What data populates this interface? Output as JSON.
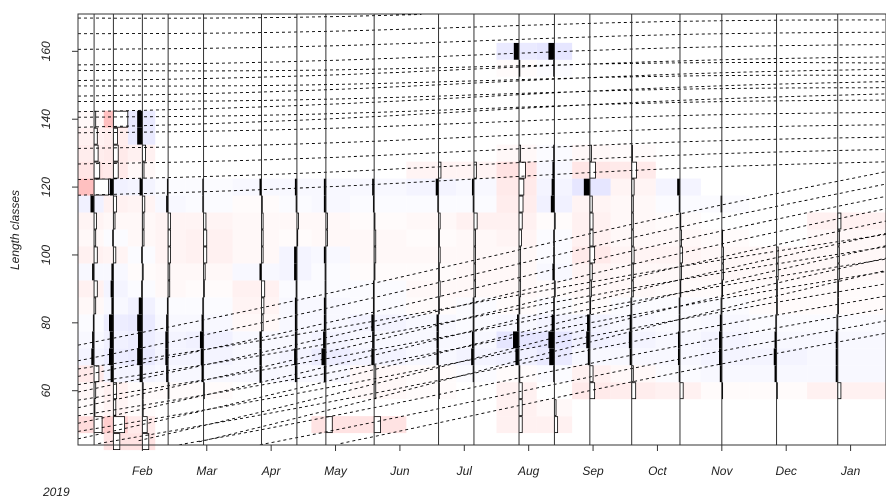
{
  "chart_data": {
    "type": "heatmap",
    "title": "",
    "xlabel": "",
    "ylabel": "Length classes",
    "year_label": "2019",
    "xlim": [
      0,
      12.55
    ],
    "ylim": [
      44,
      171
    ],
    "x_ticks": [
      {
        "label": "Feb",
        "value": 1.0
      },
      {
        "label": "Mar",
        "value": 2.0
      },
      {
        "label": "Apr",
        "value": 3.0
      },
      {
        "label": "May",
        "value": 4.0
      },
      {
        "label": "Jun",
        "value": 5.0
      },
      {
        "label": "Jul",
        "value": 6.0
      },
      {
        "label": "Aug",
        "value": 7.0
      },
      {
        "label": "Sep",
        "value": 8.0
      },
      {
        "label": "Oct",
        "value": 9.0
      },
      {
        "label": "Nov",
        "value": 10.0
      },
      {
        "label": "Dec",
        "value": 11.0
      },
      {
        "label": "Jan",
        "value": 12.0
      }
    ],
    "y_ticks": [
      60,
      80,
      100,
      120,
      140,
      160
    ],
    "grid": false,
    "colors": {
      "positive": "#ff8a8a",
      "negative": "#8a8aff",
      "bar_positive": "#000000",
      "bar_negative": "#ffffff",
      "growth_curves": "#000000",
      "axis": "#333333"
    },
    "class_width": 5,
    "samples": [
      {
        "x": 0.25,
        "cells": [
          [
            50,
            0.5
          ],
          [
            55,
            0.05
          ],
          [
            60,
            0.1
          ],
          [
            65,
            0.3
          ],
          [
            70,
            -0.15
          ],
          [
            75,
            -0.1
          ],
          [
            80,
            -0.05
          ],
          [
            85,
            0.1
          ],
          [
            90,
            0.2
          ],
          [
            95,
            -0.1
          ],
          [
            100,
            0.2
          ],
          [
            105,
            0.1
          ],
          [
            110,
            0.15
          ],
          [
            115,
            -0.2
          ],
          [
            120,
            0.9
          ],
          [
            125,
            0.35
          ],
          [
            130,
            0.25
          ],
          [
            135,
            0.2
          ],
          [
            140,
            0.1
          ]
        ]
      },
      {
        "x": 0.55,
        "cells": [
          [
            45,
            0.4
          ],
          [
            50,
            0.7
          ],
          [
            55,
            0.15
          ],
          [
            60,
            0.2
          ],
          [
            65,
            -0.15
          ],
          [
            70,
            -0.25
          ],
          [
            75,
            -0.2
          ],
          [
            80,
            -0.25
          ],
          [
            85,
            -0.1
          ],
          [
            90,
            -0.15
          ],
          [
            95,
            -0.1
          ],
          [
            100,
            0.15
          ],
          [
            105,
            -0.05
          ],
          [
            110,
            0.1
          ],
          [
            115,
            0.2
          ],
          [
            120,
            -0.2
          ],
          [
            125,
            0.3
          ],
          [
            130,
            0.3
          ],
          [
            135,
            0.25
          ],
          [
            140,
            0.9
          ]
        ]
      },
      {
        "x": 1.0,
        "cells": [
          [
            45,
            0.4
          ],
          [
            50,
            0.3
          ],
          [
            55,
            0.05
          ],
          [
            60,
            0.05
          ],
          [
            65,
            -0.15
          ],
          [
            70,
            -0.3
          ],
          [
            75,
            -0.25
          ],
          [
            80,
            -0.3
          ],
          [
            85,
            -0.2
          ],
          [
            90,
            -0.05
          ],
          [
            95,
            0.05
          ],
          [
            100,
            -0.05
          ],
          [
            105,
            0.1
          ],
          [
            110,
            0.1
          ],
          [
            115,
            0.15
          ],
          [
            120,
            -0.15
          ],
          [
            125,
            0.1
          ],
          [
            130,
            0.2
          ],
          [
            135,
            -0.3
          ],
          [
            140,
            -0.3
          ]
        ]
      },
      {
        "x": 1.4,
        "cells": [
          [
            60,
            0.05
          ],
          [
            65,
            -0.1
          ],
          [
            70,
            -0.15
          ],
          [
            75,
            -0.15
          ],
          [
            80,
            -0.1
          ],
          [
            85,
            -0.05
          ],
          [
            90,
            0.1
          ],
          [
            95,
            0.1
          ],
          [
            100,
            0.15
          ],
          [
            105,
            0.15
          ],
          [
            110,
            0.15
          ],
          [
            115,
            -0.1
          ],
          [
            120,
            -0.05
          ]
        ]
      },
      {
        "x": 1.95,
        "cells": [
          [
            60,
            0.05
          ],
          [
            65,
            -0.1
          ],
          [
            70,
            -0.15
          ],
          [
            75,
            -0.2
          ],
          [
            80,
            -0.1
          ],
          [
            85,
            -0.05
          ],
          [
            90,
            0.05
          ],
          [
            95,
            0.1
          ],
          [
            100,
            0.2
          ],
          [
            105,
            0.2
          ],
          [
            110,
            0.15
          ],
          [
            115,
            -0.05
          ],
          [
            120,
            -0.05
          ]
        ]
      },
      {
        "x": 2.85,
        "cells": [
          [
            65,
            -0.1
          ],
          [
            70,
            -0.1
          ],
          [
            75,
            -0.1
          ],
          [
            80,
            0.1
          ],
          [
            85,
            0.15
          ],
          [
            90,
            0.2
          ],
          [
            95,
            -0.1
          ],
          [
            100,
            0.1
          ],
          [
            105,
            0.1
          ],
          [
            110,
            0.1
          ],
          [
            115,
            0.05
          ],
          [
            120,
            -0.1
          ]
        ]
      },
      {
        "x": 3.4,
        "cells": [
          [
            65,
            -0.1
          ],
          [
            70,
            -0.15
          ],
          [
            75,
            -0.1
          ],
          [
            80,
            -0.1
          ],
          [
            85,
            -0.1
          ],
          [
            90,
            -0.05
          ],
          [
            95,
            -0.15
          ],
          [
            100,
            -0.15
          ],
          [
            105,
            0.05
          ],
          [
            110,
            0.1
          ],
          [
            115,
            -0.05
          ],
          [
            120,
            -0.1
          ]
        ]
      },
      {
        "x": 3.85,
        "cells": [
          [
            50,
            0.4
          ],
          [
            65,
            -0.1
          ],
          [
            70,
            -0.25
          ],
          [
            75,
            -0.15
          ],
          [
            80,
            -0.1
          ],
          [
            85,
            -0.1
          ],
          [
            90,
            -0.05
          ],
          [
            95,
            -0.05
          ],
          [
            100,
            -0.1
          ],
          [
            105,
            0.1
          ],
          [
            110,
            0.1
          ],
          [
            115,
            -0.1
          ],
          [
            120,
            -0.1
          ]
        ]
      },
      {
        "x": 4.6,
        "cells": [
          [
            50,
            0.4
          ],
          [
            60,
            0.1
          ],
          [
            65,
            0.1
          ],
          [
            70,
            -0.15
          ],
          [
            75,
            -0.1
          ],
          [
            80,
            -0.15
          ],
          [
            85,
            -0.05
          ],
          [
            90,
            -0.05
          ],
          [
            95,
            0.05
          ],
          [
            100,
            0.1
          ],
          [
            105,
            0.1
          ],
          [
            110,
            0.05
          ],
          [
            115,
            -0.05
          ],
          [
            120,
            -0.1
          ]
        ]
      },
      {
        "x": 5.6,
        "cells": [
          [
            60,
            0.05
          ],
          [
            65,
            0.05
          ],
          [
            70,
            -0.1
          ],
          [
            75,
            -0.1
          ],
          [
            80,
            -0.1
          ],
          [
            85,
            0.05
          ],
          [
            90,
            0.1
          ],
          [
            95,
            0.05
          ],
          [
            100,
            0.1
          ],
          [
            105,
            0.05
          ],
          [
            110,
            0.1
          ],
          [
            115,
            -0.05
          ],
          [
            120,
            -0.15
          ],
          [
            125,
            0.15
          ]
        ]
      },
      {
        "x": 6.15,
        "cells": [
          [
            65,
            -0.05
          ],
          [
            70,
            -0.15
          ],
          [
            75,
            -0.1
          ],
          [
            80,
            -0.05
          ],
          [
            85,
            -0.05
          ],
          [
            90,
            0.1
          ],
          [
            95,
            0.1
          ],
          [
            100,
            0.1
          ],
          [
            105,
            0.1
          ],
          [
            110,
            0.2
          ],
          [
            115,
            -0.05
          ],
          [
            120,
            -0.1
          ],
          [
            125,
            0.15
          ]
        ]
      },
      {
        "x": 6.85,
        "cells": [
          [
            50,
            0.2
          ],
          [
            55,
            0.2
          ],
          [
            60,
            0.2
          ],
          [
            65,
            0.05
          ],
          [
            70,
            -0.2
          ],
          [
            75,
            -0.35
          ],
          [
            80,
            -0.1
          ],
          [
            85,
            0.05
          ],
          [
            90,
            0.1
          ],
          [
            95,
            0.1
          ],
          [
            100,
            0.1
          ],
          [
            105,
            0.15
          ],
          [
            110,
            0.2
          ],
          [
            115,
            0.25
          ],
          [
            120,
            0.3
          ],
          [
            125,
            0.4
          ],
          [
            130,
            0.1
          ],
          [
            155,
            0.05
          ],
          [
            160,
            -0.3
          ]
        ]
      },
      {
        "x": 7.4,
        "cells": [
          [
            50,
            0.2
          ],
          [
            55,
            0.1
          ],
          [
            65,
            -0.05
          ],
          [
            70,
            -0.3
          ],
          [
            75,
            -0.35
          ],
          [
            80,
            -0.15
          ],
          [
            85,
            -0.05
          ],
          [
            90,
            0.05
          ],
          [
            95,
            -0.1
          ],
          [
            100,
            -0.05
          ],
          [
            105,
            -0.05
          ],
          [
            110,
            0.05
          ],
          [
            115,
            -0.2
          ],
          [
            120,
            -0.15
          ],
          [
            125,
            -0.1
          ],
          [
            130,
            -0.05
          ],
          [
            155,
            -0.05
          ],
          [
            160,
            -0.35
          ]
        ]
      },
      {
        "x": 7.95,
        "cells": [
          [
            60,
            0.3
          ],
          [
            65,
            0.2
          ],
          [
            70,
            -0.1
          ],
          [
            75,
            -0.2
          ],
          [
            80,
            -0.15
          ],
          [
            85,
            0.05
          ],
          [
            90,
            0.1
          ],
          [
            95,
            0.15
          ],
          [
            100,
            0.3
          ],
          [
            105,
            0.2
          ],
          [
            110,
            0.2
          ],
          [
            115,
            0.15
          ],
          [
            120,
            -0.35
          ],
          [
            125,
            0.35
          ],
          [
            130,
            0.1
          ]
        ]
      },
      {
        "x": 8.6,
        "cells": [
          [
            60,
            0.25
          ],
          [
            65,
            0.1
          ],
          [
            70,
            -0.1
          ],
          [
            75,
            -0.15
          ],
          [
            80,
            -0.1
          ],
          [
            85,
            -0.05
          ],
          [
            90,
            0.1
          ],
          [
            95,
            0.1
          ],
          [
            100,
            0.15
          ],
          [
            105,
            0.1
          ],
          [
            110,
            0.1
          ],
          [
            115,
            0.1
          ],
          [
            120,
            0.15
          ],
          [
            125,
            0.3
          ],
          [
            130,
            0.05
          ]
        ]
      },
      {
        "x": 9.35,
        "cells": [
          [
            60,
            0.2
          ],
          [
            65,
            -0.05
          ],
          [
            70,
            -0.1
          ],
          [
            75,
            -0.1
          ],
          [
            80,
            -0.05
          ],
          [
            85,
            -0.05
          ],
          [
            90,
            0.05
          ],
          [
            95,
            0.1
          ],
          [
            100,
            0.15
          ],
          [
            105,
            0.1
          ],
          [
            110,
            0.05
          ],
          [
            115,
            -0.05
          ],
          [
            120,
            -0.15
          ]
        ]
      },
      {
        "x": 10.0,
        "cells": [
          [
            60,
            0.05
          ],
          [
            65,
            -0.1
          ],
          [
            70,
            -0.15
          ],
          [
            75,
            -0.15
          ],
          [
            80,
            -0.1
          ],
          [
            85,
            -0.05
          ],
          [
            90,
            0.05
          ],
          [
            95,
            0.1
          ],
          [
            100,
            0.1
          ],
          [
            105,
            0.05
          ],
          [
            115,
            -0.05
          ]
        ]
      },
      {
        "x": 10.85,
        "cells": [
          [
            60,
            0.05
          ],
          [
            65,
            -0.1
          ],
          [
            70,
            -0.15
          ],
          [
            75,
            -0.1
          ],
          [
            80,
            -0.05
          ],
          [
            85,
            0.05
          ],
          [
            90,
            0.05
          ],
          [
            95,
            0.1
          ],
          [
            100,
            0.1
          ]
        ]
      },
      {
        "x": 11.8,
        "cells": [
          [
            60,
            0.2
          ],
          [
            65,
            -0.1
          ],
          [
            70,
            -0.1
          ],
          [
            75,
            -0.1
          ],
          [
            80,
            -0.05
          ],
          [
            85,
            0.05
          ],
          [
            90,
            0.05
          ],
          [
            95,
            0.1
          ],
          [
            100,
            0.1
          ],
          [
            105,
            0.1
          ],
          [
            110,
            0.2
          ]
        ]
      }
    ],
    "growth_curves": [
      {
        "points": [
          [
            0,
            55
          ],
          [
            12.55,
            110
          ]
        ]
      },
      {
        "points": [
          [
            0,
            48
          ],
          [
            12.55,
            91.5
          ]
        ]
      },
      {
        "points": [
          [
            0,
            136
          ],
          [
            12.55,
            142
          ]
        ]
      },
      {
        "points": [
          [
            0,
            156
          ],
          [
            12.55,
            162
          ]
        ]
      }
    ]
  }
}
